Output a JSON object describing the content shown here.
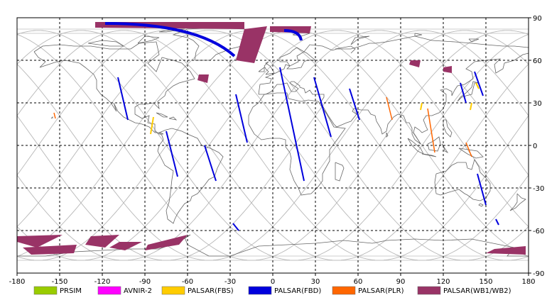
{
  "map": {
    "x_ticks": [
      "-180",
      "-150",
      "-120",
      "-90",
      "-60",
      "-30",
      "0",
      "30",
      "60",
      "90",
      "120",
      "150",
      "180"
    ],
    "y_ticks": [
      "90",
      "60",
      "30",
      "0",
      "-30",
      "-60",
      "-90"
    ],
    "lon_range": [
      -180,
      180
    ],
    "lat_range": [
      -90,
      90
    ],
    "grid": "dashed"
  },
  "colors": {
    "PRSIM": "#99cc00",
    "AVNIR-2": "#ff00ff",
    "PALSAR(FBS)": "#ffcc00",
    "PALSAR(FBD)": "#0000dd",
    "PALSAR(PLR)": "#ff6600",
    "PALSAR(WB1/WB2)": "#993366",
    "coastline": "#666666",
    "orbit_track": "#bbbbbb",
    "grid": "#000000"
  },
  "legend": [
    {
      "label": "PRSIM",
      "color": "#99cc00"
    },
    {
      "label": "AVNIR-2",
      "color": "#ff00ff"
    },
    {
      "label": "PALSAR(FBS)",
      "color": "#ffcc00"
    },
    {
      "label": "PALSAR(FBD)",
      "color": "#0000dd"
    },
    {
      "label": "PALSAR(PLR)",
      "color": "#ff6600"
    },
    {
      "label": "PALSAR(WB1/WB2)",
      "color": "#993366"
    }
  ],
  "swaths": {
    "fbd_segments": [
      {
        "lon1": -109,
        "lat1": 48,
        "lon2": -102,
        "lat2": 18
      },
      {
        "lon1": -75,
        "lat1": 10,
        "lon2": -67,
        "lat2": -22
      },
      {
        "lon1": -48,
        "lat1": 0,
        "lon2": -40,
        "lat2": -25
      },
      {
        "lon1": -26,
        "lat1": 36,
        "lon2": -18,
        "lat2": 2
      },
      {
        "lon1": 5,
        "lat1": 55,
        "lon2": 22,
        "lat2": -25
      },
      {
        "lon1": 29,
        "lat1": 48,
        "lon2": 41,
        "lat2": 6
      },
      {
        "lon1": 54,
        "lat1": 40,
        "lon2": 61,
        "lat2": 18
      },
      {
        "lon1": 132,
        "lat1": 44,
        "lon2": 136,
        "lat2": 30
      },
      {
        "lon1": 142,
        "lat1": 52,
        "lon2": 148,
        "lat2": 35
      },
      {
        "lon1": 144,
        "lat1": -20,
        "lon2": 150,
        "lat2": -42
      },
      {
        "lon1": 157,
        "lat1": -52,
        "lon2": 159,
        "lat2": -56
      },
      {
        "lon1": -28,
        "lat1": -55,
        "lon2": -24,
        "lat2": -60
      }
    ],
    "fbd_arc": {
      "lon_start": -118,
      "lat_start": 86,
      "lon_end": -27,
      "lat_end": 63
    },
    "fbd_arc2": {
      "lon_start": 8,
      "lat_start": 81,
      "lon_end": 20,
      "lat_end": 74
    },
    "fbs_segments": [
      {
        "lon1": -84,
        "lat1": 20,
        "lon2": -86,
        "lat2": 8
      },
      {
        "lon1": 143,
        "lat1": 44,
        "lon2": 145,
        "lat2": 40
      },
      {
        "lon1": 140,
        "lat1": 30,
        "lon2": 139,
        "lat2": 25
      },
      {
        "lon1": 105,
        "lat1": 30,
        "lon2": 104,
        "lat2": 25
      }
    ],
    "plr_segments": [
      {
        "lon1": 80,
        "lat1": 34,
        "lon2": 84,
        "lat2": 18
      },
      {
        "lon1": 109,
        "lat1": 26,
        "lon2": 114,
        "lat2": -5
      },
      {
        "lon1": 136,
        "lat1": 2,
        "lon2": 140,
        "lat2": -8
      },
      {
        "lon1": -154,
        "lat1": 23,
        "lon2": -153,
        "lat2": 19
      }
    ],
    "wb_polys": [
      [
        [
          -125,
          87
        ],
        [
          -20,
          87
        ],
        [
          -20,
          82
        ],
        [
          -125,
          83
        ]
      ],
      [
        [
          -20,
          82
        ],
        [
          -4,
          84
        ],
        [
          -13,
          58
        ],
        [
          -26,
          60
        ]
      ],
      [
        [
          -2,
          84
        ],
        [
          27,
          84
        ],
        [
          26,
          79
        ],
        [
          -2,
          80
        ]
      ],
      [
        [
          -52,
          50
        ],
        [
          -45,
          50
        ],
        [
          -46,
          44
        ],
        [
          -53,
          46
        ]
      ],
      [
        [
          97,
          60
        ],
        [
          104,
          60
        ],
        [
          103,
          55
        ],
        [
          96,
          57
        ]
      ],
      [
        [
          120,
          55
        ],
        [
          126,
          56
        ],
        [
          126,
          51
        ],
        [
          120,
          52
        ]
      ],
      [
        [
          -180,
          -64
        ],
        [
          -148,
          -63
        ],
        [
          -166,
          -72
        ],
        [
          -180,
          -68
        ]
      ],
      [
        [
          -176,
          -72
        ],
        [
          -138,
          -70
        ],
        [
          -140,
          -76
        ],
        [
          -170,
          -77
        ]
      ],
      [
        [
          -128,
          -64
        ],
        [
          -108,
          -63
        ],
        [
          -118,
          -72
        ],
        [
          -132,
          -70
        ]
      ],
      [
        [
          -108,
          -68
        ],
        [
          -92,
          -68
        ],
        [
          -104,
          -74
        ],
        [
          -115,
          -72
        ]
      ],
      [
        [
          -88,
          -70
        ],
        [
          -60,
          -63
        ],
        [
          -66,
          -70
        ],
        [
          -90,
          -74
        ]
      ],
      [
        [
          156,
          -73
        ],
        [
          178,
          -71
        ],
        [
          178,
          -77
        ],
        [
          150,
          -76
        ]
      ]
    ]
  },
  "track_offsets": [
    -165,
    -135,
    -105,
    -75,
    -45,
    -15,
    15,
    45,
    75,
    105,
    135,
    165
  ]
}
